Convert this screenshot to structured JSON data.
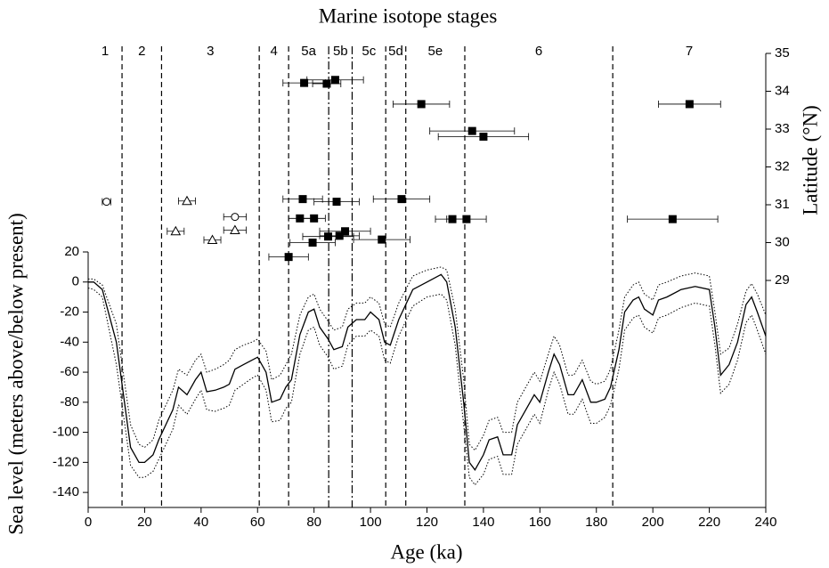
{
  "chart_data": {
    "type": "line",
    "title": "Marine isotope stages",
    "xlabel": "Age (ka)",
    "ylabel": "Sea level (meters above/below present)",
    "y2label": "Latitude (°N)",
    "xlim": [
      0,
      240
    ],
    "xticks": [
      0,
      20,
      40,
      60,
      80,
      100,
      120,
      140,
      160,
      180,
      200,
      220,
      240
    ],
    "ylim": [
      -150,
      20
    ],
    "yticks": [
      20,
      0,
      -20,
      -40,
      -60,
      -80,
      -100,
      -120,
      -140
    ],
    "y2lim": [
      23,
      35
    ],
    "y2ticks": [
      29,
      30,
      31,
      32,
      33,
      34,
      35
    ],
    "color": "#000000",
    "stage_bounds": [
      {
        "value": 12,
        "style": "dashed"
      },
      {
        "value": 26,
        "style": "dashed"
      },
      {
        "value": 60.6,
        "style": "dashed"
      },
      {
        "value": 71,
        "style": "dashed"
      },
      {
        "value": 85.2,
        "style": "dashdot"
      },
      {
        "value": 93.5,
        "style": "dashdot"
      },
      {
        "value": 105.4,
        "style": "dashed"
      },
      {
        "value": 112.5,
        "style": "dashed"
      },
      {
        "value": 133.4,
        "style": "dashed"
      },
      {
        "value": 185.8,
        "style": "dashed"
      }
    ],
    "stages": [
      "1",
      "2",
      "3",
      "4",
      "5a",
      "5b",
      "5c",
      "5d",
      "5e",
      "6",
      "7"
    ],
    "x": [
      0,
      2,
      5,
      10,
      15,
      18,
      20,
      23,
      25,
      30,
      32,
      35,
      38,
      40,
      42,
      45,
      48,
      50,
      52,
      55,
      58,
      60,
      63,
      65,
      68,
      70,
      72,
      75,
      78,
      80,
      82,
      85,
      87,
      90,
      92,
      95,
      98,
      100,
      103,
      105,
      107,
      110,
      115,
      120,
      125,
      127,
      130,
      133,
      135,
      137,
      140,
      142,
      145,
      147,
      150,
      152,
      155,
      158,
      160,
      163,
      165,
      167,
      170,
      172,
      175,
      178,
      180,
      183,
      185,
      188,
      190,
      193,
      195,
      197,
      200,
      202,
      205,
      210,
      215,
      220,
      222,
      224,
      227,
      230,
      233,
      235,
      237,
      240
    ],
    "series": [
      {
        "style": "solid",
        "values": [
          0,
          0,
          -5,
          -40,
          -110,
          -120,
          -120,
          -115,
          -105,
          -85,
          -70,
          -75,
          -65,
          -60,
          -73,
          -72,
          -70,
          -68,
          -58,
          -55,
          -52,
          -50,
          -60,
          -80,
          -78,
          -70,
          -65,
          -35,
          -20,
          -18,
          -30,
          -38,
          -45,
          -43,
          -30,
          -25,
          -25,
          -20,
          -25,
          -40,
          -42,
          -25,
          -5,
          0,
          5,
          0,
          -30,
          -80,
          -120,
          -125,
          -115,
          -105,
          -103,
          -115,
          -115,
          -95,
          -85,
          -75,
          -80,
          -60,
          -48,
          -55,
          -75,
          -75,
          -65,
          -80,
          -80,
          -78,
          -70,
          -45,
          -20,
          -12,
          -10,
          -18,
          -22,
          -12,
          -10,
          -5,
          -3,
          -5,
          -30,
          -62,
          -55,
          -40,
          -15,
          -10,
          -20,
          -36
        ]
      },
      {
        "style": "dotted",
        "values": [
          2,
          2,
          -2,
          -28,
          -95,
          -108,
          -110,
          -105,
          -92,
          -72,
          -58,
          -62,
          -52,
          -48,
          -60,
          -58,
          -55,
          -52,
          -45,
          -42,
          -40,
          -38,
          -46,
          -65,
          -62,
          -55,
          -48,
          -22,
          -10,
          -8,
          -18,
          -26,
          -32,
          -30,
          -18,
          -14,
          -14,
          -10,
          -14,
          -28,
          -30,
          -14,
          4,
          8,
          10,
          8,
          -18,
          -65,
          -108,
          -112,
          -102,
          -92,
          -90,
          -100,
          -100,
          -80,
          -70,
          -60,
          -66,
          -48,
          -36,
          -42,
          -62,
          -62,
          -52,
          -66,
          -68,
          -66,
          -58,
          -32,
          -10,
          -2,
          0,
          -8,
          -12,
          -2,
          0,
          4,
          6,
          4,
          -20,
          -48,
          -44,
          -28,
          -6,
          -1,
          -8,
          -22
        ]
      },
      {
        "style": "dotted",
        "values": [
          -4,
          -5,
          -10,
          -55,
          -122,
          -130,
          -130,
          -126,
          -118,
          -98,
          -82,
          -88,
          -78,
          -72,
          -85,
          -86,
          -84,
          -82,
          -72,
          -68,
          -64,
          -62,
          -72,
          -93,
          -92,
          -84,
          -80,
          -48,
          -32,
          -30,
          -42,
          -50,
          -58,
          -56,
          -42,
          -36,
          -36,
          -32,
          -36,
          -52,
          -54,
          -36,
          -16,
          -10,
          -8,
          -12,
          -42,
          -95,
          -130,
          -135,
          -128,
          -118,
          -116,
          -128,
          -128,
          -108,
          -98,
          -88,
          -94,
          -72,
          -60,
          -68,
          -88,
          -88,
          -78,
          -94,
          -94,
          -90,
          -82,
          -58,
          -32,
          -24,
          -22,
          -30,
          -34,
          -24,
          -22,
          -17,
          -14,
          -16,
          -42,
          -74,
          -68,
          -52,
          -27,
          -22,
          -32,
          -48
        ]
      }
    ],
    "points": [
      {
        "marker": "square-filled",
        "axis": "y2",
        "x": [
          76.5,
          84.5,
          87.5,
          118,
          136,
          140,
          213,
          76,
          88,
          111,
          75,
          80,
          129,
          134,
          207,
          91,
          85,
          89,
          104,
          79.5,
          71
        ],
        "values": [
          34.22,
          34.2,
          34.3,
          33.66,
          32.95,
          32.8,
          33.66,
          31.15,
          31.08,
          31.15,
          30.64,
          30.64,
          30.62,
          30.62,
          30.62,
          30.3,
          30.16,
          30.18,
          30.08,
          30.0,
          29.62
        ],
        "xerr": [
          7.5,
          5,
          10,
          10,
          15,
          16,
          11,
          7,
          8,
          10,
          4,
          4,
          6,
          7,
          16,
          9,
          9,
          7,
          10,
          8,
          7
        ]
      },
      {
        "marker": "circle-open",
        "axis": "y2",
        "x": [
          6.5,
          52
        ],
        "values": [
          31.08,
          30.68
        ],
        "xerr": [
          1.5,
          4
        ]
      },
      {
        "marker": "triangle-open",
        "axis": "y2",
        "x": [
          35,
          52,
          31,
          44
        ],
        "values": [
          31.1,
          30.33,
          30.3,
          30.07
        ],
        "xerr": [
          3,
          4,
          3,
          3
        ]
      }
    ]
  }
}
